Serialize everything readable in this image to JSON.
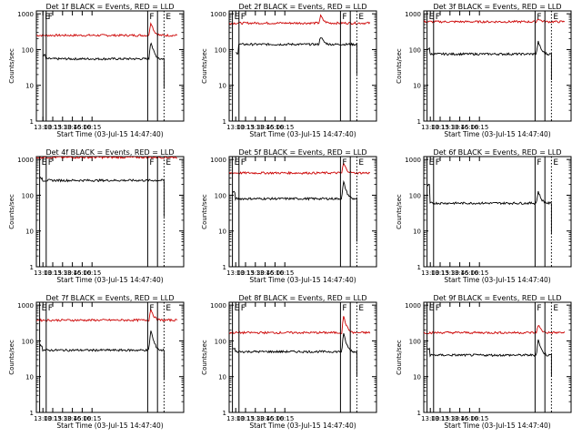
{
  "chart_data": {
    "type": "line",
    "layout": "3x3 grid of panels",
    "y_scale": "log",
    "ylim": [
      1,
      1000
    ],
    "x_start": "13:00",
    "x_end": "16:30",
    "x_tick_labels": [
      "13:00",
      "13:15",
      "13:30",
      "13:45",
      "16:00",
      "16:15"
    ],
    "y_tick_labels": [
      "1",
      "10",
      "100",
      "1000"
    ],
    "xlabel": "Start Time (03-Jul-15 14:47:40)",
    "ylabel": "Counts/sec",
    "series_colors": {
      "events": "#000000",
      "lld": "#cc0000"
    },
    "panels": [
      {
        "title": "Det 1f BLACK = Events, RED = LLD",
        "markers": [
          {
            "label": "E",
            "t": "13:00",
            "style": "solid"
          },
          {
            "label": "F",
            "t": "13:05",
            "style": "solid"
          },
          {
            "label": "F",
            "t": "15:40",
            "style": "solid"
          },
          {
            "label": "",
            "t": "15:55",
            "style": "solid"
          },
          {
            "label": "E",
            "t": "16:05",
            "style": "dotted"
          }
        ],
        "events": {
          "start": "13:00",
          "end": "16:05",
          "base": 55,
          "peak": 170,
          "peak_time": "15:45",
          "pre_spike": 70,
          "drop": 8
        },
        "lld": {
          "start": "12:50",
          "end": "16:25",
          "base": 250,
          "peak": 600,
          "peak_time": "15:45"
        }
      },
      {
        "title": "Det 2f BLACK = Events, RED = LLD",
        "markers": [
          {
            "label": "E",
            "t": "12:55",
            "style": "solid"
          },
          {
            "label": "F",
            "t": "13:05",
            "style": "solid"
          },
          {
            "label": "F",
            "t": "15:40",
            "style": "solid"
          },
          {
            "label": "",
            "t": "15:55",
            "style": "solid"
          },
          {
            "label": "E",
            "t": "16:05",
            "style": "dotted"
          }
        ],
        "events": {
          "start": "13:00",
          "end": "16:05",
          "base": 140,
          "peak": 240,
          "peak_time": "15:10",
          "pre_spike": 80,
          "drop": 20
        },
        "lld": {
          "start": "12:50",
          "end": "16:25",
          "base": 550,
          "peak": 900,
          "peak_time": "15:10"
        }
      },
      {
        "title": "Det 3f BLACK = Events, RED = LLD",
        "markers": [
          {
            "label": "E",
            "t": "12:55",
            "style": "solid"
          },
          {
            "label": "F",
            "t": "13:05",
            "style": "solid"
          },
          {
            "label": "F",
            "t": "15:40",
            "style": "solid"
          },
          {
            "label": "",
            "t": "15:55",
            "style": "solid"
          },
          {
            "label": "E",
            "t": "16:05",
            "style": "dotted"
          }
        ],
        "events": {
          "start": "12:55",
          "end": "16:05",
          "base": 75,
          "peak": 170,
          "peak_time": "15:45",
          "pre_spike": 105,
          "drop": 14
        },
        "lld": {
          "start": "12:50",
          "end": "16:25",
          "base": 600,
          "peak": 750,
          "peak_time": "15:45"
        }
      },
      {
        "title": "Det 4f BLACK = Events, RED = LLD",
        "markers": [
          {
            "label": "E",
            "t": "12:55",
            "style": "solid"
          },
          {
            "label": "F",
            "t": "13:05",
            "style": "solid"
          },
          {
            "label": "F",
            "t": "15:40",
            "style": "solid"
          },
          {
            "label": "",
            "t": "15:55",
            "style": "solid"
          },
          {
            "label": "E",
            "t": "16:05",
            "style": "dotted"
          }
        ],
        "events": {
          "start": "12:55",
          "end": "16:05",
          "base": 260,
          "peak": 260,
          "peak_time": "15:45",
          "pre_spike": 300,
          "drop": 25
        },
        "lld": {
          "start": "12:50",
          "end": "16:25",
          "base": 1150,
          "peak": 1150,
          "peak_time": "15:45"
        }
      },
      {
        "title": "Det 5f BLACK = Events, RED = LLD",
        "markers": [
          {
            "label": "E",
            "t": "12:55",
            "style": "solid"
          },
          {
            "label": "F",
            "t": "13:05",
            "style": "solid"
          },
          {
            "label": "F",
            "t": "15:40",
            "style": "solid"
          },
          {
            "label": "",
            "t": "15:55",
            "style": "solid"
          },
          {
            "label": "E",
            "t": "16:05",
            "style": "dotted"
          }
        ],
        "events": {
          "start": "12:55",
          "end": "16:05",
          "base": 80,
          "peak": 240,
          "peak_time": "15:45",
          "pre_spike": 120,
          "drop": 5
        },
        "lld": {
          "start": "12:50",
          "end": "16:25",
          "base": 420,
          "peak": 800,
          "peak_time": "15:45"
        }
      },
      {
        "title": "Det 6f BLACK = Events, RED = LLD",
        "markers": [
          {
            "label": "E",
            "t": "12:55",
            "style": "solid"
          },
          {
            "label": "F",
            "t": "13:05",
            "style": "solid"
          },
          {
            "label": "F",
            "t": "15:40",
            "style": "solid"
          },
          {
            "label": "",
            "t": "15:55",
            "style": "solid"
          },
          {
            "label": "E",
            "t": "16:05",
            "style": "dotted"
          }
        ],
        "events": {
          "start": "12:55",
          "end": "16:05",
          "base": 60,
          "peak": 130,
          "peak_time": "15:45",
          "pre_spike": 190,
          "drop": 8
        },
        "lld": null
      },
      {
        "title": "Det 7f BLACK = Events, RED = LLD",
        "markers": [
          {
            "label": "E",
            "t": "12:55",
            "style": "solid"
          },
          {
            "label": "F",
            "t": "13:05",
            "style": "solid"
          },
          {
            "label": "F",
            "t": "15:40",
            "style": "solid"
          },
          {
            "label": "",
            "t": "15:55",
            "style": "solid"
          },
          {
            "label": "E",
            "t": "16:05",
            "style": "dotted"
          }
        ],
        "events": {
          "start": "12:55",
          "end": "16:05",
          "base": 55,
          "peak": 200,
          "peak_time": "15:45",
          "pre_spike": 75,
          "drop": 8
        },
        "lld": {
          "start": "12:50",
          "end": "16:25",
          "base": 380,
          "peak": 800,
          "peak_time": "15:45"
        }
      },
      {
        "title": "Det 8f BLACK = Events, RED = LLD",
        "markers": [
          {
            "label": "E",
            "t": "12:55",
            "style": "solid"
          },
          {
            "label": "F",
            "t": "13:05",
            "style": "solid"
          },
          {
            "label": "F",
            "t": "15:40",
            "style": "solid"
          },
          {
            "label": "",
            "t": "15:55",
            "style": "solid"
          },
          {
            "label": "E",
            "t": "16:05",
            "style": "dotted"
          }
        ],
        "events": {
          "start": "12:55",
          "end": "16:05",
          "base": 50,
          "peak": 160,
          "peak_time": "15:45",
          "pre_spike": 60,
          "drop": 10
        },
        "lld": {
          "start": "12:50",
          "end": "16:25",
          "base": 170,
          "peak": 500,
          "peak_time": "15:45"
        }
      },
      {
        "title": "Det 9f BLACK = Events, RED = LLD",
        "markers": [
          {
            "label": "E",
            "t": "12:55",
            "style": "solid"
          },
          {
            "label": "F",
            "t": "13:05",
            "style": "solid"
          },
          {
            "label": "F",
            "t": "15:40",
            "style": "solid"
          },
          {
            "label": "",
            "t": "15:55",
            "style": "solid"
          },
          {
            "label": "E",
            "t": "16:05",
            "style": "dotted"
          }
        ],
        "events": {
          "start": "12:55",
          "end": "16:05",
          "base": 40,
          "peak": 110,
          "peak_time": "15:45",
          "pre_spike": 60,
          "drop": 10
        },
        "lld": {
          "start": "12:50",
          "end": "16:25",
          "base": 170,
          "peak": 290,
          "peak_time": "15:45"
        }
      }
    ]
  }
}
